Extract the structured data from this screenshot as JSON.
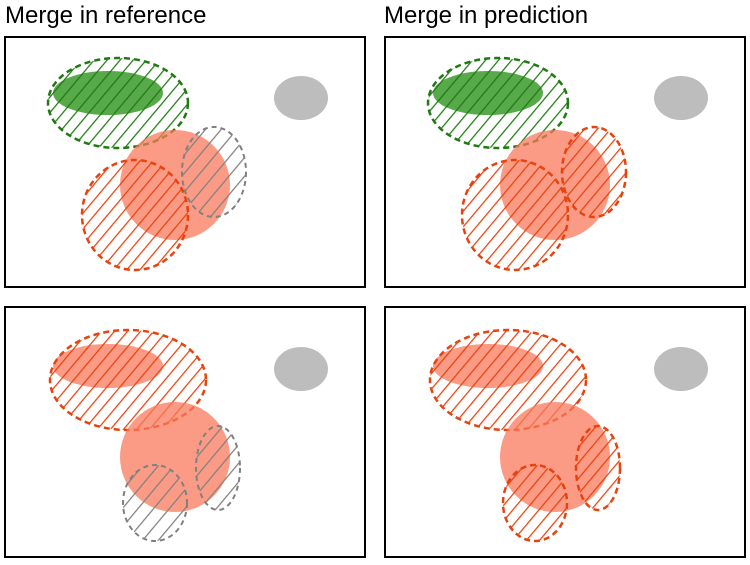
{
  "columns": [
    {
      "title": "Merge in reference"
    },
    {
      "title": "Merge in prediction"
    }
  ]
}
